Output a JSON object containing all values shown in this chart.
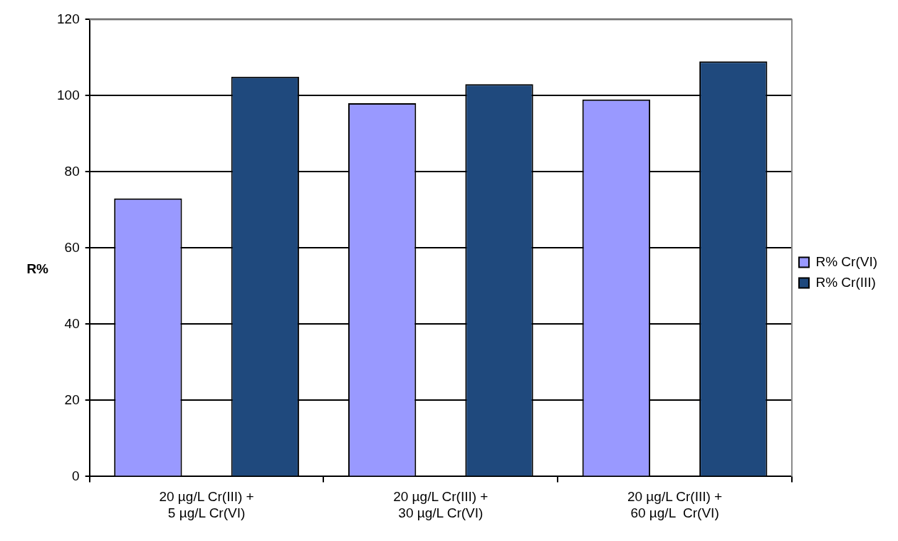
{
  "chart_data": {
    "type": "bar",
    "ylabel": "R%",
    "categories": [
      "20 µg/L Cr(III) +\n5 µg/L Cr(VI)",
      "20 µg/L Cr(III) +\n30 µg/L Cr(VI)",
      "20 µg/L Cr(III) +\n60 µg/L  Cr(VI)"
    ],
    "series": [
      {
        "name": "R% Cr(VI)",
        "color": "#9999ff",
        "values": [
          73,
          98,
          99
        ]
      },
      {
        "name": "R% Cr(III)",
        "color": "#1f497d",
        "values": [
          105,
          103,
          109
        ]
      }
    ],
    "ylim": [
      0,
      120
    ],
    "yticks": [
      0,
      20,
      40,
      60,
      80,
      100,
      120
    ],
    "grid": "y",
    "legend": "right"
  }
}
